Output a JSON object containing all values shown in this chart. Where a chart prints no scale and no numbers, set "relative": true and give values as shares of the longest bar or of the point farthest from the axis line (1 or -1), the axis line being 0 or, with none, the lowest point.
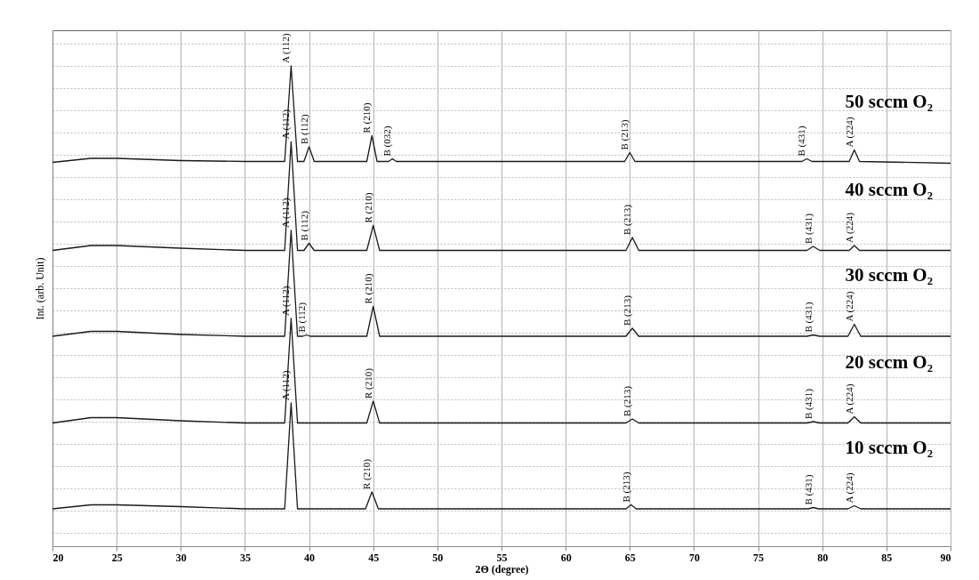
{
  "chart_data": {
    "type": "line",
    "relative": true,
    "xlabel": "2Θ (degree)",
    "ylabel": "Int. (arb. Unit)",
    "xlim": [
      20,
      90
    ],
    "xticks": [
      20,
      25,
      30,
      35,
      40,
      45,
      50,
      55,
      60,
      65,
      70,
      75,
      80,
      85,
      90
    ],
    "grid": true,
    "legend": false,
    "marker": "none",
    "line_style": "solid",
    "series": [
      {
        "name": "50 sccm  O₂",
        "color": "#1a1a1a",
        "x": [
          20,
          23,
          25,
          30,
          35,
          38.1,
          38.6,
          39.1,
          39.6,
          40.0,
          40.4,
          44.5,
          44.9,
          45.3,
          46.2,
          46.5,
          46.8,
          64.6,
          65.0,
          65.4,
          78.4,
          78.8,
          79.2,
          82.1,
          82.5,
          82.9,
          90
        ],
        "values": [
          0.783,
          0.792,
          0.792,
          0.787,
          0.785,
          0.785,
          1,
          0.785,
          0.785,
          0.818,
          0.785,
          0.785,
          0.843,
          0.785,
          0.785,
          0.791,
          0.785,
          0.785,
          0.805,
          0.785,
          0.785,
          0.791,
          0.785,
          0.785,
          0.811,
          0.785,
          0.781
        ]
      },
      {
        "name": "40 sccm  O₂",
        "color": "#1a1a1a",
        "x": [
          20,
          23,
          25,
          30,
          35,
          38.1,
          38.6,
          39.1,
          39.6,
          40.0,
          40.4,
          44.5,
          45.0,
          45.5,
          64.7,
          65.2,
          65.7,
          78.8,
          79.3,
          79.8,
          82.1,
          82.5,
          82.9,
          90
        ],
        "values": [
          0.585,
          0.596,
          0.596,
          0.59,
          0.585,
          0.585,
          0.829,
          0.585,
          0.585,
          0.601,
          0.585,
          0.585,
          0.641,
          0.585,
          0.585,
          0.614,
          0.585,
          0.585,
          0.594,
          0.585,
          0.585,
          0.596,
          0.585,
          0.585
        ]
      },
      {
        "name": "30 sccm  O₂",
        "color": "#1a1a1a",
        "x": [
          20,
          23,
          25,
          30,
          35,
          38.1,
          38.6,
          39.1,
          39.5,
          39.8,
          40.1,
          44.5,
          45.0,
          45.5,
          64.7,
          65.2,
          65.7,
          78.8,
          79.3,
          79.8,
          82.0,
          82.5,
          83.0,
          90
        ],
        "values": [
          0.392,
          0.403,
          0.403,
          0.396,
          0.392,
          0.392,
          0.63,
          0.392,
          0.392,
          0.395,
          0.392,
          0.392,
          0.459,
          0.392,
          0.392,
          0.41,
          0.392,
          0.392,
          0.395,
          0.392,
          0.392,
          0.419,
          0.392,
          0.392
        ]
      },
      {
        "name": "20 sccm  O₂",
        "color": "#1a1a1a",
        "x": [
          20,
          23,
          25,
          30,
          35,
          38.1,
          38.6,
          39.1,
          44.5,
          45.0,
          45.5,
          64.7,
          65.2,
          65.7,
          78.8,
          79.3,
          79.8,
          82.0,
          82.5,
          83.0,
          90
        ],
        "values": [
          0.197,
          0.209,
          0.209,
          0.202,
          0.197,
          0.197,
          0.432,
          0.197,
          0.197,
          0.246,
          0.197,
          0.197,
          0.206,
          0.197,
          0.197,
          0.2,
          0.197,
          0.197,
          0.211,
          0.197,
          0.197
        ]
      },
      {
        "name": "10 sccm  O₂",
        "color": "#1a1a1a",
        "x": [
          20,
          23,
          25,
          30,
          35,
          38.1,
          38.6,
          39.1,
          44.4,
          44.9,
          45.4,
          64.7,
          65.1,
          65.5,
          78.9,
          79.3,
          79.7,
          82.0,
          82.5,
          83.0,
          90
        ],
        "values": [
          0.004,
          0.013,
          0.013,
          0.009,
          0.004,
          0.004,
          0.242,
          0.004,
          0.004,
          0.042,
          0.004,
          0.004,
          0.013,
          0.004,
          0.004,
          0.007,
          0.004,
          0.004,
          0.011,
          0.004,
          0.004
        ]
      }
    ],
    "annotations": [
      {
        "text": "A (112)",
        "x": 38.6,
        "y": 1
      },
      {
        "text": "B (112)",
        "x": 40.0,
        "y": 0.818
      },
      {
        "text": "R (210)",
        "x": 44.9,
        "y": 0.843
      },
      {
        "text": "B (032)",
        "x": 46.5,
        "y": 0.791
      },
      {
        "text": "B (213)",
        "x": 65.0,
        "y": 0.805
      },
      {
        "text": "B (431)",
        "x": 78.8,
        "y": 0.791
      },
      {
        "text": "A (224)",
        "x": 82.5,
        "y": 0.811
      },
      {
        "text": "A (112)",
        "x": 38.6,
        "y": 0.829
      },
      {
        "text": "B (112)",
        "x": 40.0,
        "y": 0.601
      },
      {
        "text": "R (210)",
        "x": 45.0,
        "y": 0.641
      },
      {
        "text": "B (213)",
        "x": 65.2,
        "y": 0.614
      },
      {
        "text": "B (431)",
        "x": 79.3,
        "y": 0.594
      },
      {
        "text": "A (224)",
        "x": 82.5,
        "y": 0.596
      },
      {
        "text": "A (112)",
        "x": 38.6,
        "y": 0.63
      },
      {
        "text": "B (112)",
        "x": 39.8,
        "y": 0.395
      },
      {
        "text": "R (210)",
        "x": 45.0,
        "y": 0.459
      },
      {
        "text": "B (213)",
        "x": 65.2,
        "y": 0.41
      },
      {
        "text": "B (431)",
        "x": 79.3,
        "y": 0.395
      },
      {
        "text": "A (224)",
        "x": 82.5,
        "y": 0.419
      },
      {
        "text": "A (112)",
        "x": 38.6,
        "y": 0.432
      },
      {
        "text": "R (210)",
        "x": 45.0,
        "y": 0.246
      },
      {
        "text": "B (213)",
        "x": 65.2,
        "y": 0.206
      },
      {
        "text": "B (431)",
        "x": 79.3,
        "y": 0.2
      },
      {
        "text": "A (224)",
        "x": 82.5,
        "y": 0.211
      },
      {
        "text": "A (112)",
        "x": 38.6,
        "y": 0.242
      },
      {
        "text": "R (210)",
        "x": 44.9,
        "y": 0.042
      },
      {
        "text": "B (213)",
        "x": 65.1,
        "y": 0.013
      },
      {
        "text": "B (431)",
        "x": 79.3,
        "y": 0.007
      },
      {
        "text": "A (224)",
        "x": 82.5,
        "y": 0.011
      }
    ]
  }
}
